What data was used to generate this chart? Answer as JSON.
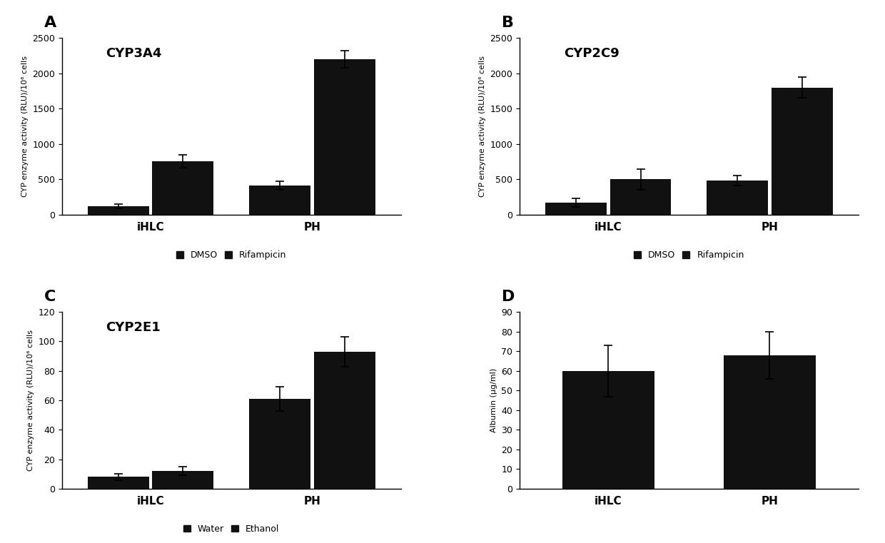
{
  "panel_A": {
    "title": "CYP3A4",
    "label": "A",
    "groups": [
      "iHLC",
      "PH"
    ],
    "bar1_label": "DMSO",
    "bar2_label": "Rifampicin",
    "bar1_values": [
      120,
      410
    ],
    "bar2_values": [
      760,
      2200
    ],
    "bar1_errors": [
      30,
      60
    ],
    "bar2_errors": [
      90,
      120
    ],
    "ylim": [
      0,
      2500
    ],
    "yticks": [
      0,
      500,
      1000,
      1500,
      2000,
      2500
    ],
    "ylabel": "CYP enzyme activity (RLU)/10⁶ cells"
  },
  "panel_B": {
    "title": "CYP2C9",
    "label": "B",
    "groups": [
      "iHLC",
      "PH"
    ],
    "bar1_label": "DMSO",
    "bar2_label": "Rifampicin",
    "bar1_values": [
      170,
      480
    ],
    "bar2_values": [
      500,
      1800
    ],
    "bar1_errors": [
      60,
      70
    ],
    "bar2_errors": [
      150,
      150
    ],
    "ylim": [
      0,
      2500
    ],
    "yticks": [
      0,
      500,
      1000,
      1500,
      2000,
      2500
    ],
    "ylabel": "CYP enzyme activity (RLU)/10⁶ cells"
  },
  "panel_C": {
    "title": "CYP2E1",
    "label": "C",
    "groups": [
      "iHLC",
      "PH"
    ],
    "bar1_label": "Water",
    "bar2_label": "Ethanol",
    "bar1_values": [
      8,
      61
    ],
    "bar2_values": [
      12,
      93
    ],
    "bar1_errors": [
      2,
      8
    ],
    "bar2_errors": [
      3,
      10
    ],
    "ylim": [
      0,
      120
    ],
    "yticks": [
      0,
      20,
      40,
      60,
      80,
      100,
      120
    ],
    "ylabel": "CYP enzyme activity (RLU)/10⁶ cells"
  },
  "panel_D": {
    "title": "",
    "label": "D",
    "groups": [
      "iHLC",
      "PH"
    ],
    "bar1_values": [
      60,
      68
    ],
    "bar1_errors": [
      13,
      12
    ],
    "ylim": [
      0,
      90
    ],
    "yticks": [
      0,
      10,
      20,
      30,
      40,
      50,
      60,
      70,
      80,
      90
    ],
    "ylabel": "Albumin (µg/ml)"
  },
  "bar_color": "#111111",
  "bar_width": 0.38,
  "fig_bg": "#ffffff"
}
